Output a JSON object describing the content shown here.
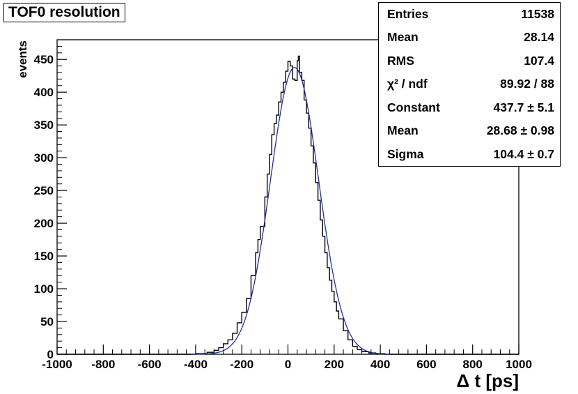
{
  "title": "TOF0 resolution",
  "stats": [
    {
      "label": "Entries",
      "value": "11538"
    },
    {
      "label": "Mean",
      "value": "28.14"
    },
    {
      "label": "RMS",
      "value": "107.4"
    },
    {
      "label": "χ² / ndf",
      "value": "89.92 / 88"
    },
    {
      "label": "Constant",
      "value": "437.7 ± 5.1"
    },
    {
      "label": "Mean",
      "value": "28.68 ± 0.98"
    },
    {
      "label": "Sigma",
      "value": "104.4 ± 0.7"
    }
  ],
  "colors": {
    "histogram": "#000000",
    "fit": "#1f2fa8",
    "frame": "#000000"
  },
  "chart_data": {
    "type": "histogram",
    "title": "TOF0 resolution",
    "xlabel": "Δ t  [ps]",
    "ylabel": "events",
    "xlim": [
      -1000,
      1000
    ],
    "ylim": [
      0,
      480
    ],
    "x_ticks": [
      "-1000",
      "-800",
      "-600",
      "-400",
      "-200",
      "0",
      "200",
      "400",
      "600",
      "800",
      "1000"
    ],
    "y_ticks": [
      "0",
      "50",
      "100",
      "150",
      "200",
      "250",
      "300",
      "350",
      "400",
      "450"
    ],
    "bin_width": 10,
    "histogram_points": [
      [
        -1000,
        0
      ],
      [
        -430,
        0
      ],
      [
        -400,
        1
      ],
      [
        -350,
        3
      ],
      [
        -320,
        6
      ],
      [
        -300,
        10
      ],
      [
        -280,
        16
      ],
      [
        -260,
        22
      ],
      [
        -240,
        32
      ],
      [
        -220,
        48
      ],
      [
        -200,
        64
      ],
      [
        -180,
        85
      ],
      [
        -160,
        120
      ],
      [
        -140,
        155
      ],
      [
        -130,
        175
      ],
      [
        -120,
        195
      ],
      [
        -100,
        240
      ],
      [
        -90,
        275
      ],
      [
        -80,
        305
      ],
      [
        -70,
        335
      ],
      [
        -60,
        352
      ],
      [
        -50,
        365
      ],
      [
        -40,
        385
      ],
      [
        -30,
        400
      ],
      [
        -20,
        415
      ],
      [
        -10,
        432
      ],
      [
        0,
        447
      ],
      [
        10,
        440
      ],
      [
        20,
        420
      ],
      [
        30,
        418
      ],
      [
        40,
        448
      ],
      [
        45,
        455
      ],
      [
        50,
        430
      ],
      [
        60,
        418
      ],
      [
        70,
        388
      ],
      [
        80,
        368
      ],
      [
        90,
        345
      ],
      [
        100,
        318
      ],
      [
        110,
        292
      ],
      [
        120,
        262
      ],
      [
        130,
        235
      ],
      [
        140,
        205
      ],
      [
        150,
        180
      ],
      [
        160,
        155
      ],
      [
        170,
        132
      ],
      [
        180,
        113
      ],
      [
        190,
        96
      ],
      [
        200,
        80
      ],
      [
        210,
        66
      ],
      [
        220,
        54
      ],
      [
        240,
        36
      ],
      [
        260,
        22
      ],
      [
        280,
        12
      ],
      [
        300,
        7
      ],
      [
        320,
        4
      ],
      [
        350,
        2
      ],
      [
        380,
        1
      ],
      [
        420,
        0
      ],
      [
        1000,
        0
      ]
    ],
    "fit": {
      "function": "gaus",
      "constant": 437.7,
      "mean": 28.68,
      "sigma": 104.4
    }
  }
}
